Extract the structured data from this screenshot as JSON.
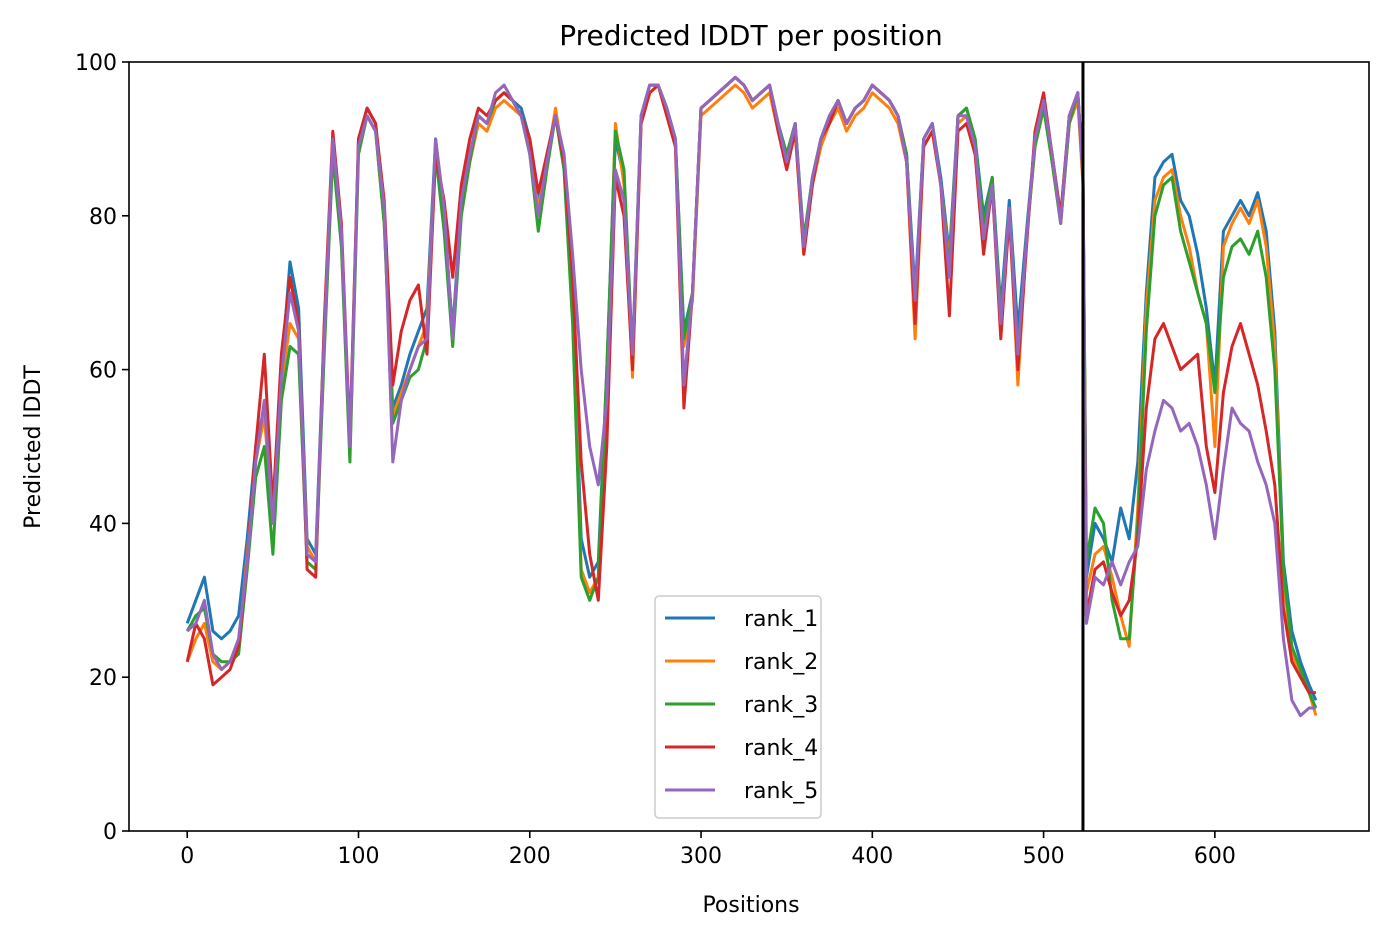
{
  "chart_data": {
    "type": "line",
    "title": "Predicted lDDT per position",
    "xlabel": "Positions",
    "ylabel": "Predicted lDDT",
    "xlim": [
      -34,
      690
    ],
    "ylim": [
      0,
      100
    ],
    "xticks": [
      0,
      100,
      200,
      300,
      400,
      500,
      600
    ],
    "yticks": [
      0,
      20,
      40,
      60,
      80,
      100
    ],
    "grid": false,
    "legend_position": "lower-center",
    "chain_break": 523,
    "x": [
      0,
      5,
      10,
      15,
      20,
      25,
      30,
      35,
      40,
      45,
      50,
      55,
      60,
      65,
      70,
      75,
      80,
      85,
      90,
      95,
      100,
      105,
      110,
      115,
      120,
      125,
      130,
      135,
      140,
      145,
      150,
      155,
      160,
      165,
      170,
      175,
      180,
      185,
      190,
      195,
      200,
      205,
      210,
      215,
      220,
      225,
      230,
      235,
      240,
      245,
      250,
      255,
      260,
      265,
      270,
      275,
      280,
      285,
      290,
      295,
      300,
      305,
      310,
      315,
      320,
      325,
      330,
      335,
      340,
      345,
      350,
      355,
      360,
      365,
      370,
      375,
      380,
      385,
      390,
      395,
      400,
      405,
      410,
      415,
      420,
      425,
      430,
      435,
      440,
      445,
      450,
      455,
      460,
      465,
      470,
      475,
      480,
      485,
      490,
      495,
      500,
      505,
      510,
      515,
      520,
      523,
      525,
      530,
      535,
      540,
      545,
      550,
      555,
      560,
      565,
      570,
      575,
      580,
      585,
      590,
      595,
      600,
      605,
      610,
      615,
      620,
      625,
      630,
      635,
      640,
      645,
      650,
      655,
      659
    ],
    "series": [
      {
        "name": "rank_1",
        "color": "#1f77b4",
        "values": [
          27,
          30,
          33,
          26,
          25,
          26,
          28,
          38,
          50,
          55,
          42,
          60,
          74,
          68,
          38,
          36,
          65,
          90,
          78,
          50,
          90,
          94,
          92,
          80,
          55,
          58,
          62,
          65,
          68,
          90,
          80,
          65,
          82,
          88,
          93,
          92,
          95,
          96,
          95,
          94,
          90,
          82,
          88,
          93,
          88,
          70,
          38,
          33,
          35,
          60,
          90,
          85,
          60,
          93,
          97,
          97,
          94,
          90,
          65,
          70,
          94,
          95,
          96,
          97,
          98,
          97,
          95,
          96,
          97,
          92,
          88,
          92,
          76,
          85,
          90,
          93,
          95,
          92,
          94,
          95,
          97,
          96,
          95,
          93,
          88,
          70,
          90,
          92,
          85,
          75,
          93,
          94,
          90,
          80,
          85,
          68,
          82,
          65,
          78,
          90,
          95,
          88,
          80,
          93,
          96,
          85,
          33,
          40,
          38,
          35,
          42,
          38,
          48,
          70,
          85,
          87,
          88,
          82,
          80,
          75,
          68,
          58,
          78,
          80,
          82,
          80,
          83,
          78,
          65,
          35,
          26,
          22,
          19,
          17
        ]
      },
      {
        "name": "rank_2",
        "color": "#ff7f0e",
        "values": [
          22,
          25,
          27,
          22,
          21,
          22,
          24,
          36,
          48,
          54,
          40,
          58,
          66,
          64,
          37,
          35,
          63,
          89,
          77,
          49,
          89,
          93,
          91,
          79,
          54,
          57,
          60,
          63,
          66,
          89,
          79,
          64,
          81,
          87,
          92,
          91,
          94,
          95,
          94,
          93,
          89,
          81,
          87,
          94,
          87,
          68,
          34,
          31,
          33,
          58,
          92,
          84,
          59,
          92,
          96,
          97,
          93,
          89,
          63,
          69,
          93,
          94,
          95,
          96,
          97,
          96,
          94,
          95,
          96,
          91,
          87,
          91,
          75,
          84,
          89,
          92,
          94,
          91,
          93,
          94,
          96,
          95,
          94,
          92,
          87,
          64,
          89,
          91,
          84,
          74,
          92,
          93,
          89,
          78,
          84,
          65,
          81,
          58,
          77,
          89,
          94,
          87,
          79,
          92,
          95,
          84,
          31,
          36,
          37,
          33,
          28,
          24,
          42,
          68,
          82,
          85,
          86,
          80,
          76,
          70,
          66,
          50,
          76,
          79,
          81,
          79,
          82,
          76,
          63,
          33,
          23,
          20,
          18,
          15
        ]
      },
      {
        "name": "rank_3",
        "color": "#2ca02c",
        "values": [
          26,
          28,
          29,
          23,
          22,
          22,
          23,
          34,
          46,
          50,
          36,
          56,
          63,
          62,
          35,
          34,
          62,
          88,
          76,
          48,
          88,
          93,
          91,
          79,
          53,
          56,
          59,
          60,
          64,
          88,
          78,
          63,
          80,
          87,
          93,
          92,
          95,
          96,
          95,
          93,
          88,
          78,
          86,
          93,
          86,
          66,
          33,
          30,
          33,
          60,
          91,
          86,
          62,
          93,
          97,
          97,
          94,
          90,
          64,
          70,
          94,
          95,
          96,
          97,
          98,
          97,
          95,
          96,
          97,
          92,
          88,
          92,
          77,
          85,
          90,
          93,
          95,
          92,
          94,
          95,
          97,
          96,
          95,
          93,
          88,
          68,
          90,
          92,
          84,
          73,
          93,
          94,
          90,
          79,
          85,
          67,
          81,
          62,
          77,
          89,
          94,
          87,
          79,
          92,
          96,
          85,
          35,
          42,
          40,
          30,
          25,
          25,
          40,
          65,
          80,
          84,
          85,
          78,
          74,
          70,
          66,
          57,
          72,
          76,
          77,
          75,
          78,
          72,
          60,
          34,
          24,
          21,
          18,
          16
        ]
      },
      {
        "name": "rank_4",
        "color": "#d62728",
        "values": [
          22,
          27,
          25,
          19,
          20,
          21,
          24,
          35,
          50,
          62,
          42,
          62,
          72,
          66,
          34,
          33,
          66,
          91,
          79,
          51,
          90,
          94,
          92,
          82,
          58,
          65,
          69,
          71,
          62,
          88,
          82,
          72,
          84,
          90,
          94,
          93,
          95,
          96,
          95,
          93,
          90,
          83,
          88,
          93,
          87,
          72,
          48,
          36,
          30,
          50,
          85,
          80,
          60,
          92,
          96,
          97,
          93,
          89,
          55,
          70,
          94,
          95,
          96,
          97,
          98,
          97,
          95,
          96,
          97,
          91,
          86,
          91,
          75,
          84,
          90,
          92,
          95,
          92,
          94,
          95,
          97,
          96,
          95,
          93,
          87,
          66,
          89,
          91,
          84,
          67,
          91,
          92,
          88,
          75,
          84,
          64,
          80,
          60,
          76,
          91,
          96,
          88,
          80,
          93,
          96,
          85,
          28,
          34,
          35,
          31,
          28,
          30,
          38,
          55,
          64,
          66,
          63,
          60,
          61,
          62,
          50,
          44,
          57,
          63,
          66,
          62,
          58,
          52,
          45,
          29,
          22,
          20,
          18,
          18
        ]
      },
      {
        "name": "rank_5",
        "color": "#9467bd",
        "values": [
          26,
          27,
          30,
          23,
          21,
          22,
          25,
          35,
          48,
          56,
          40,
          59,
          70,
          65,
          36,
          35,
          64,
          90,
          78,
          50,
          89,
          93,
          91,
          81,
          48,
          56,
          60,
          63,
          64,
          90,
          81,
          64,
          82,
          88,
          93,
          92,
          96,
          97,
          95,
          93,
          88,
          80,
          87,
          93,
          88,
          75,
          60,
          50,
          45,
          56,
          86,
          82,
          62,
          93,
          97,
          97,
          94,
          90,
          58,
          70,
          94,
          95,
          96,
          97,
          98,
          97,
          95,
          96,
          97,
          92,
          87,
          92,
          76,
          85,
          90,
          93,
          95,
          92,
          94,
          95,
          97,
          96,
          95,
          93,
          87,
          69,
          90,
          92,
          84,
          72,
          93,
          93,
          89,
          77,
          84,
          66,
          81,
          62,
          77,
          90,
          95,
          88,
          79,
          93,
          96,
          85,
          27,
          33,
          32,
          35,
          32,
          35,
          37,
          47,
          52,
          56,
          55,
          52,
          53,
          50,
          45,
          38,
          47,
          55,
          53,
          52,
          48,
          45,
          40,
          25,
          17,
          15,
          16,
          16
        ]
      }
    ]
  }
}
